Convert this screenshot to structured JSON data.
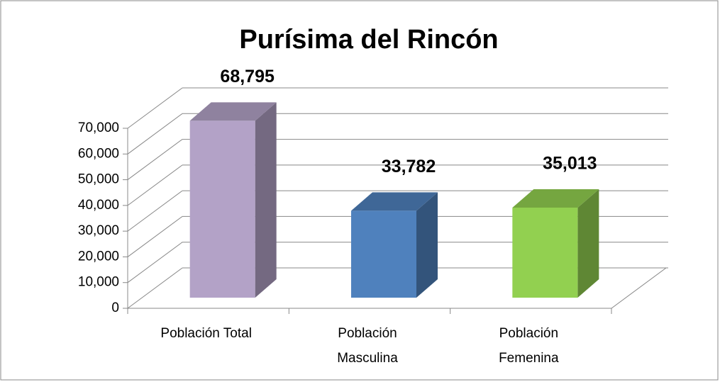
{
  "chart_data": {
    "type": "bar3d",
    "title": "Purísima del Rincón",
    "categories": [
      "Población Total",
      "Población Masculina",
      "Población Femenina"
    ],
    "values": [
      68795,
      33782,
      35013
    ],
    "value_labels": [
      "68,795",
      "33,782",
      "35,013"
    ],
    "colors": [
      "#b3a2c7",
      "#4f81bd",
      "#92d050"
    ],
    "ylim": [
      0,
      70000
    ],
    "yticks": [
      0,
      {
        "value": 10000,
        "label": "10,000"
      },
      {
        "value": 20000,
        "label": "20,000"
      },
      {
        "value": 30000,
        "label": "30,000"
      },
      {
        "value": 40000,
        "label": "40,000"
      },
      {
        "value": 50000,
        "label": "50,000"
      },
      {
        "value": 60000,
        "label": "60,000"
      },
      {
        "value": 70000,
        "label": "70,000"
      }
    ],
    "grid": true
  }
}
